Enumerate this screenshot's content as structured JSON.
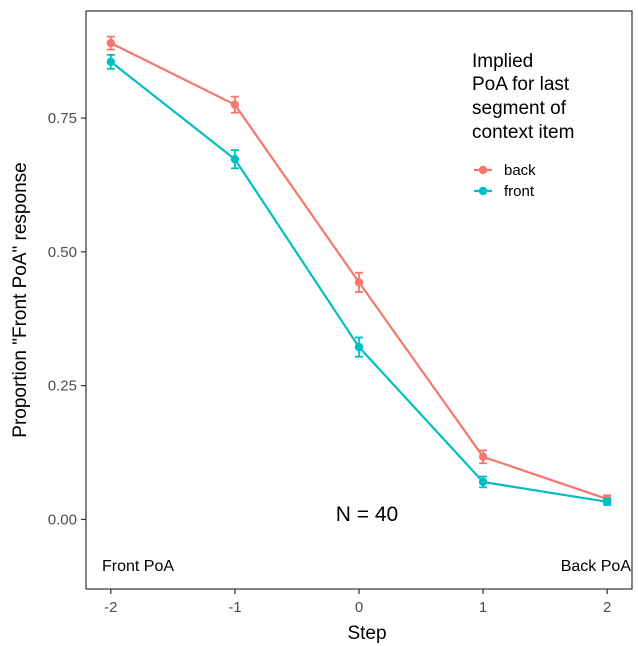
{
  "chart_data": {
    "type": "line",
    "x": [
      -2,
      -1,
      0,
      1,
      2
    ],
    "xlabel": "Step",
    "ylabel": "Proportion \"Front PoA\" response",
    "xlim": [
      -2.2,
      2.2
    ],
    "ylim": [
      -0.13,
      0.95
    ],
    "yticks": [
      0.0,
      0.25,
      0.5,
      0.75
    ],
    "ytick_labels": [
      "0.00",
      "0.25",
      "0.50",
      "0.75"
    ],
    "xtick_labels": [
      "-2",
      "-1",
      "0",
      "1",
      "2"
    ],
    "legend": {
      "title": [
        "Implied",
        "PoA for last",
        "segment of",
        "context item"
      ],
      "position": "top-right"
    },
    "series": [
      {
        "name": "back",
        "color": "#F8766D",
        "values": [
          0.89,
          0.775,
          0.443,
          0.117,
          0.038
        ],
        "err": [
          0.012,
          0.015,
          0.018,
          0.012,
          0.007
        ]
      },
      {
        "name": "front",
        "color": "#00BFC4",
        "values": [
          0.855,
          0.673,
          0.322,
          0.07,
          0.033
        ],
        "err": [
          0.013,
          0.017,
          0.018,
          0.01,
          0.006
        ]
      }
    ],
    "annotations": {
      "n": "N = 40",
      "left": "Front PoA",
      "right": "Back PoA"
    },
    "grid": false
  }
}
